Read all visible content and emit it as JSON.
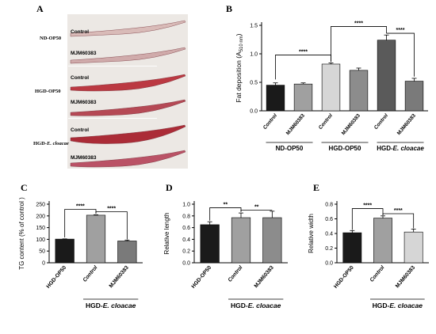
{
  "panel_letters": {
    "A": "A",
    "B": "B",
    "C": "C",
    "D": "D",
    "E": "E"
  },
  "panel_a": {
    "groups": [
      {
        "name": "ND-OP50",
        "rows": [
          "Control",
          "MJM60383"
        ]
      },
      {
        "name": "HGD-OP50",
        "rows": [
          "Control",
          "MJM60383"
        ]
      },
      {
        "name": "HGD-",
        "name_italic": "E. cloacae",
        "rows": [
          "Control",
          "MJM60383"
        ]
      }
    ],
    "worm_colors": [
      "#d9b9b6",
      "#cfa8a8",
      "#b9303a",
      "#b3414e",
      "#a8222e",
      "#b84a60"
    ]
  },
  "chart_data": [
    {
      "id": "B",
      "type": "bar",
      "ylabel_main": "Fat deposition (A",
      "ylabel_sub": "510 nm",
      "ylabel_end": ")",
      "ylim": [
        0,
        1.5
      ],
      "yticks": [
        "0.0",
        "0.5",
        "1.0",
        "1.5"
      ],
      "ytick_values": [
        0,
        0.5,
        1.0,
        1.5
      ],
      "categories": [
        "Control",
        "MJM60383",
        "Control",
        "MJM60383",
        "Control",
        "MJM60383"
      ],
      "values": [
        0.45,
        0.47,
        0.82,
        0.71,
        1.24,
        0.52
      ],
      "errors": [
        0.04,
        0.02,
        0.02,
        0.04,
        0.09,
        0.05
      ],
      "colors": [
        "#1a1a1a",
        "#a0a0a0",
        "#d6d6d6",
        "#8c8c8c",
        "#5a5a5a",
        "#7a7a7a"
      ],
      "groups": [
        {
          "label": "ND-OP50"
        },
        {
          "label": "HGD-OP50"
        },
        {
          "label": "HGD-",
          "label_italic": "E. cloacae"
        }
      ],
      "significance": [
        "****",
        "****",
        "****"
      ]
    },
    {
      "id": "C",
      "type": "bar",
      "ylabel": "TG content (% of control )",
      "ylim": [
        0,
        250
      ],
      "yticks": [
        "0",
        "50",
        "100",
        "150",
        "200",
        "250"
      ],
      "ytick_values": [
        0,
        50,
        100,
        150,
        200,
        250
      ],
      "categories": [
        "HGD-OP50",
        "Control",
        "MJM60383"
      ],
      "values": [
        101,
        203,
        93
      ],
      "errors": [
        1,
        2,
        4
      ],
      "colors": [
        "#1a1a1a",
        "#a0a0a0",
        "#7a7a7a"
      ],
      "group_label": "HGD-",
      "group_label_italic": "E. cloacae",
      "significance": [
        "****",
        "****"
      ]
    },
    {
      "id": "D",
      "type": "bar",
      "ylabel": "Relative length",
      "ylim": [
        0,
        1.0
      ],
      "yticks": [
        "0.0",
        "0.2",
        "0.4",
        "0.6",
        "0.8",
        "1.0"
      ],
      "ytick_values": [
        0,
        0.2,
        0.4,
        0.6,
        0.8,
        1.0
      ],
      "categories": [
        "HGD-OP50",
        "Control",
        "MJM60383"
      ],
      "values": [
        0.65,
        0.77,
        0.77
      ],
      "errors": [
        0.05,
        0.08,
        0.11
      ],
      "colors": [
        "#1a1a1a",
        "#a0a0a0",
        "#8c8c8c"
      ],
      "group_label": "HGD-",
      "group_label_italic": "E. cloacae",
      "significance": [
        "**",
        "**"
      ]
    },
    {
      "id": "E",
      "type": "bar",
      "ylabel": "Relative width",
      "ylim": [
        0,
        0.8
      ],
      "yticks": [
        "0.0",
        "0.2",
        "0.4",
        "0.6",
        "0.8"
      ],
      "ytick_values": [
        0,
        0.2,
        0.4,
        0.6,
        0.8
      ],
      "categories": [
        "HGD-OP50",
        "Control",
        "MJM60383"
      ],
      "values": [
        0.41,
        0.61,
        0.42
      ],
      "errors": [
        0.03,
        0.03,
        0.04
      ],
      "colors": [
        "#1a1a1a",
        "#a0a0a0",
        "#d6d6d6"
      ],
      "group_label": "HGD-",
      "group_label_italic": "E. cloacae",
      "significance": [
        "****",
        "****"
      ]
    }
  ]
}
